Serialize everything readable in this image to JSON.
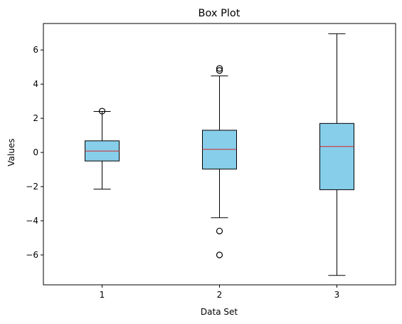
{
  "chart_data": {
    "type": "box",
    "title": "Box Plot",
    "xlabel": "Data Set",
    "ylabel": "Values",
    "ylim": [
      -7.75,
      7.55
    ],
    "yticks": [
      -6,
      -4,
      -2,
      0,
      2,
      4,
      6
    ],
    "grid": false,
    "colors": {
      "box_fill": "#87ceeb",
      "box_edge": "#000000",
      "median": "#d62728"
    },
    "series": [
      {
        "category": "1",
        "whisker_low": -2.15,
        "q1": -0.5,
        "median": 0.08,
        "q3": 0.68,
        "whisker_high": 2.4,
        "fliers": [
          2.42
        ]
      },
      {
        "category": "2",
        "whisker_low": -3.82,
        "q1": -0.97,
        "median": 0.18,
        "q3": 1.3,
        "whisker_high": 4.48,
        "fliers": [
          4.8,
          4.92,
          -4.6,
          -6.0
        ]
      },
      {
        "category": "3",
        "whisker_low": -7.2,
        "q1": -2.18,
        "median": 0.35,
        "q3": 1.7,
        "whisker_high": 6.95,
        "fliers": []
      }
    ]
  }
}
